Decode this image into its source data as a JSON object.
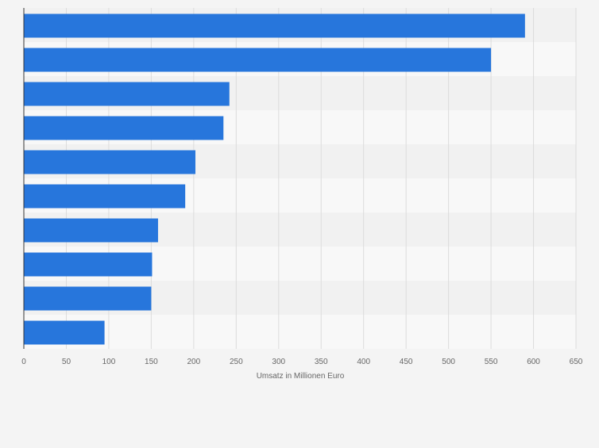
{
  "chart_data": {
    "type": "bar",
    "orientation": "horizontal",
    "categories": [
      "",
      "",
      "",
      "",
      "",
      "",
      "",
      "",
      "",
      ""
    ],
    "values": [
      590,
      550,
      242,
      235,
      202,
      190,
      158,
      151,
      150,
      95
    ],
    "title": "",
    "xlabel": "Umsatz in Millionen Euro",
    "ylabel": "",
    "xlim": [
      0,
      650
    ],
    "xticks": [
      0,
      50,
      100,
      150,
      200,
      250,
      300,
      350,
      400,
      450,
      500,
      550,
      600,
      650
    ],
    "grid": "vertical",
    "colors": {
      "bar": "#2776dc",
      "background": "#f4f4f4",
      "band_light": "#f8f8f8",
      "band_dark": "#f1f1f1",
      "grid": "#dcdcdc",
      "axis": "#333333",
      "text": "#666666"
    }
  }
}
